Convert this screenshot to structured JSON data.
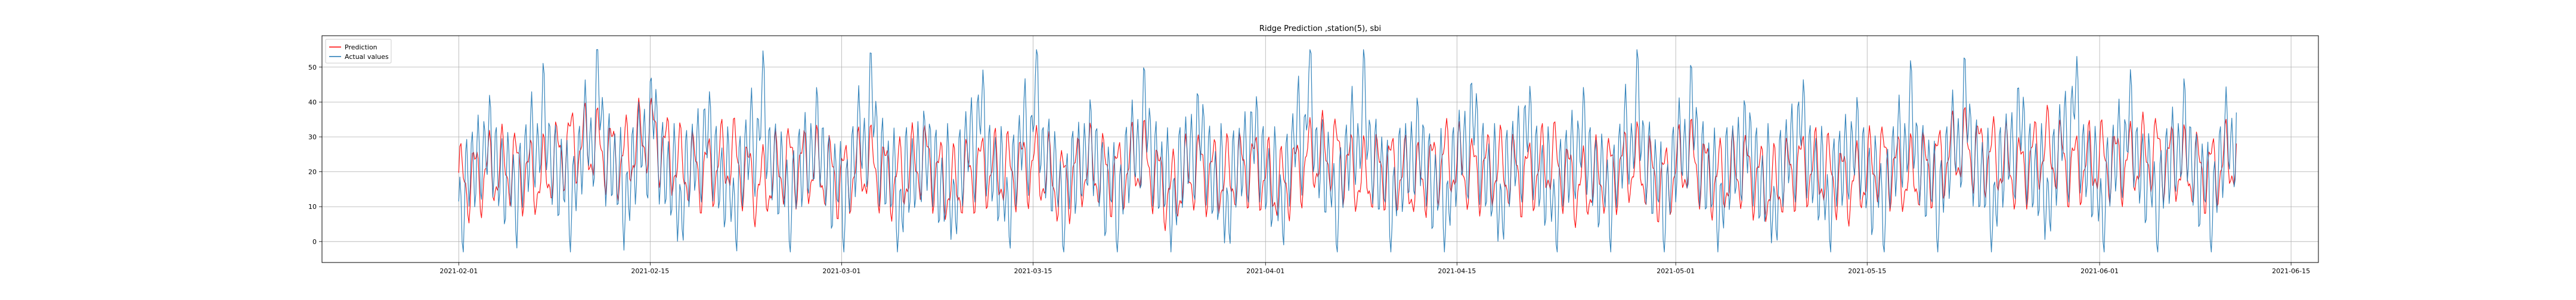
{
  "chart_data": {
    "type": "line",
    "title": "Ridge Prediction ,station(5), sbi",
    "xlabel": "",
    "ylabel": "",
    "x_range": [
      "2021-02-01",
      "2021-06-11"
    ],
    "xlim": [
      "2021-01-22",
      "2021-06-17"
    ],
    "ylim": [
      -6,
      59
    ],
    "x_ticks": [
      "2021-02-01",
      "2021-02-15",
      "2021-03-01",
      "2021-03-15",
      "2021-04-01",
      "2021-04-15",
      "2021-05-01",
      "2021-05-15",
      "2021-06-01",
      "2021-06-15"
    ],
    "y_ticks": [
      0,
      10,
      20,
      30,
      40,
      50
    ],
    "grid": true,
    "legend_position": "top-left",
    "legend": [
      {
        "name": "Prediction",
        "color": "#ff0000"
      },
      {
        "name": "Actual values",
        "color": "#1f77b4"
      }
    ],
    "series": [
      {
        "name": "Prediction",
        "color": "#ff0000",
        "x": [
          "2021-02-01",
          "2021-02-03",
          "2021-02-05",
          "2021-02-07",
          "2021-02-09",
          "2021-02-11",
          "2021-02-13",
          "2021-02-15",
          "2021-02-17",
          "2021-02-19",
          "2021-02-21",
          "2021-02-23",
          "2021-02-25",
          "2021-02-27",
          "2021-03-01",
          "2021-03-03",
          "2021-03-05",
          "2021-03-07",
          "2021-03-09",
          "2021-03-11",
          "2021-03-13",
          "2021-03-15",
          "2021-03-17",
          "2021-03-19",
          "2021-03-21",
          "2021-03-23",
          "2021-03-25",
          "2021-03-27",
          "2021-03-29",
          "2021-03-31",
          "2021-04-02",
          "2021-04-04",
          "2021-04-06",
          "2021-04-08",
          "2021-04-10",
          "2021-04-12",
          "2021-04-14",
          "2021-04-16",
          "2021-04-18",
          "2021-04-20",
          "2021-04-22",
          "2021-04-24",
          "2021-04-26",
          "2021-04-28",
          "2021-04-30",
          "2021-05-02",
          "2021-05-04",
          "2021-05-06",
          "2021-05-08",
          "2021-05-10",
          "2021-05-12",
          "2021-05-14",
          "2021-05-16",
          "2021-05-18",
          "2021-05-20",
          "2021-05-22",
          "2021-05-24",
          "2021-05-26",
          "2021-05-28",
          "2021-05-30",
          "2021-06-01",
          "2021-06-03",
          "2021-06-05",
          "2021-06-07",
          "2021-06-09",
          "2021-06-11"
        ],
        "values": [
          12,
          18,
          21,
          14,
          32,
          30,
          24,
          38,
          21,
          18,
          26,
          10,
          23,
          20,
          15,
          22,
          14,
          25,
          10,
          20,
          18,
          22,
          12,
          21,
          16,
          25,
          8,
          20,
          15,
          22,
          10,
          24,
          28,
          14,
          21,
          12,
          25,
          18,
          20,
          16,
          24,
          10,
          18,
          22,
          13,
          25,
          14,
          20,
          10,
          21,
          18,
          12,
          24,
          15,
          22,
          30,
          26,
          18,
          30,
          20,
          24,
          22,
          28,
          20,
          18,
          26
        ]
      },
      {
        "name": "Actual values",
        "color": "#1f77b4",
        "x": [
          "2021-02-01",
          "2021-02-03",
          "2021-02-05",
          "2021-02-07",
          "2021-02-09",
          "2021-02-11",
          "2021-02-13",
          "2021-02-15",
          "2021-02-17",
          "2021-02-19",
          "2021-02-21",
          "2021-02-23",
          "2021-02-25",
          "2021-02-27",
          "2021-03-01",
          "2021-03-03",
          "2021-03-05",
          "2021-03-07",
          "2021-03-09",
          "2021-03-11",
          "2021-03-13",
          "2021-03-15",
          "2021-03-17",
          "2021-03-19",
          "2021-03-21",
          "2021-03-23",
          "2021-03-25",
          "2021-03-27",
          "2021-03-29",
          "2021-03-31",
          "2021-04-02",
          "2021-04-04",
          "2021-04-06",
          "2021-04-08",
          "2021-04-10",
          "2021-04-12",
          "2021-04-14",
          "2021-04-16",
          "2021-04-18",
          "2021-04-20",
          "2021-04-22",
          "2021-04-24",
          "2021-04-26",
          "2021-04-28",
          "2021-04-30",
          "2021-05-02",
          "2021-05-04",
          "2021-05-06",
          "2021-05-08",
          "2021-05-10",
          "2021-05-12",
          "2021-05-14",
          "2021-05-16",
          "2021-05-18",
          "2021-05-20",
          "2021-05-22",
          "2021-05-24",
          "2021-05-26",
          "2021-05-28",
          "2021-05-30",
          "2021-06-01",
          "2021-06-03",
          "2021-06-05",
          "2021-06-07",
          "2021-06-09",
          "2021-06-11"
        ],
        "values": [
          1,
          35,
          5,
          45,
          2,
          54,
          3,
          47,
          1,
          40,
          0,
          50,
          2,
          37,
          1,
          52,
          0,
          30,
          2,
          48,
          0,
          55,
          1,
          33,
          0,
          46,
          2,
          40,
          0,
          38,
          1,
          56,
          0,
          50,
          2,
          34,
          0,
          45,
          1,
          42,
          0,
          38,
          2,
          50,
          0,
          47,
          1,
          36,
          0,
          44,
          2,
          35,
          0,
          46,
          1,
          50,
          0,
          43,
          2,
          53,
          0,
          44,
          1,
          40,
          0,
          52
        ]
      }
    ]
  }
}
